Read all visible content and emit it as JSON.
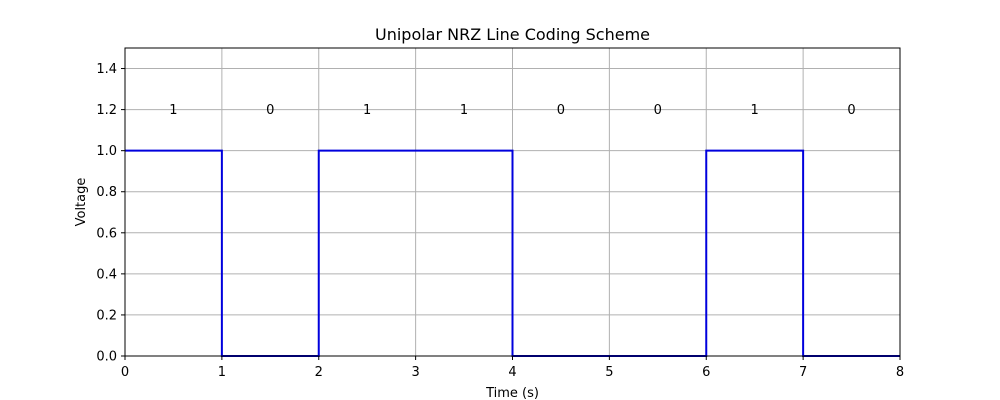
{
  "chart_data": {
    "type": "line",
    "step": "post",
    "title": "Unipolar NRZ Line Coding Scheme",
    "xlabel": "Time (s)",
    "ylabel": "Voltage",
    "xlim": [
      0,
      8
    ],
    "ylim": [
      0,
      1.5
    ],
    "x_ticks": [
      "0",
      "1",
      "2",
      "3",
      "4",
      "5",
      "6",
      "7",
      "8"
    ],
    "y_ticks": [
      "0.0",
      "0.2",
      "0.4",
      "0.6",
      "0.8",
      "1.0",
      "1.2",
      "1.4"
    ],
    "grid": true,
    "line_color": "#0000dd",
    "grid_color": "#b0b0b0",
    "bits": [
      "1",
      "0",
      "1",
      "1",
      "0",
      "0",
      "1",
      "0"
    ],
    "bit_label_y": 1.2,
    "series": [
      {
        "x": [
          0,
          1,
          2,
          3,
          4,
          5,
          6,
          7,
          8
        ],
        "values": [
          1,
          0,
          1,
          1,
          0,
          0,
          1,
          0,
          0
        ]
      }
    ]
  }
}
